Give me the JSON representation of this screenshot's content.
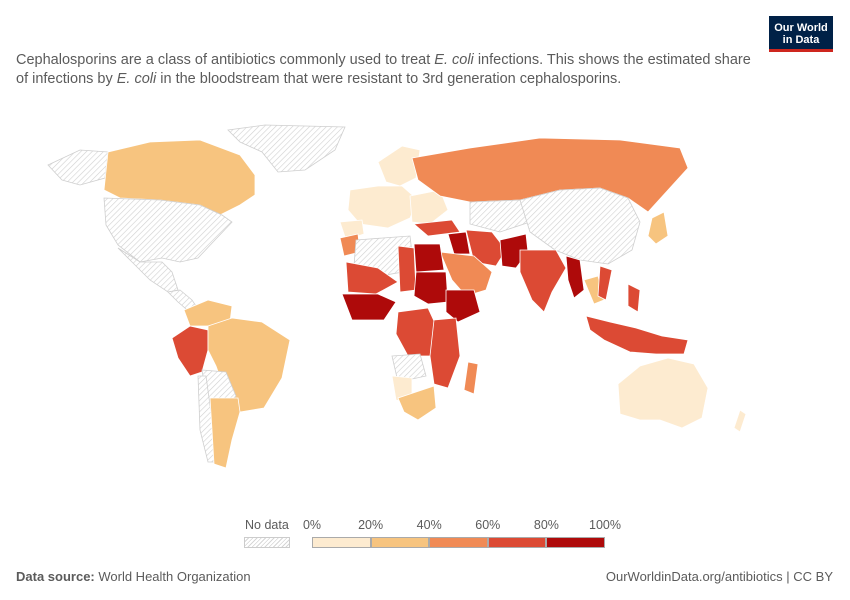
{
  "subtitle": {
    "part1": "Cephalosporins are a class of antibiotics commonly used to treat ",
    "em1": "E. coli",
    "part2": " infections. This shows the estimated share of infections by ",
    "em2": "E. coli",
    "part3": " in the bloodstream that were resistant to 3rd generation cephalosporins."
  },
  "logo": {
    "line1": "Our World",
    "line2": "in Data"
  },
  "legend": {
    "no_data_label": "No data",
    "ticks": [
      "0%",
      "20%",
      "40%",
      "60%",
      "80%",
      "100%"
    ],
    "bins": [
      "#fdebd0",
      "#f7c47f",
      "#f08a55",
      "#dc4a34",
      "#ae0a0a"
    ],
    "no_data_color": "#e9e9e9"
  },
  "footer": {
    "source_label": "Data source:",
    "source_value": " World Health Organization",
    "link": "OurWorldinData.org/antibiotics | CC BY"
  },
  "colors": {
    "canada": "#f7c47f",
    "greenland": "#e9e9e9",
    "usa": "#e9e9e9",
    "mexico": "#e9e9e9",
    "peru": "#dc4a34",
    "brazil": "#f7c47f",
    "argentina": "#f7c47f",
    "chile": "#e9e9e9",
    "europe": "#fdebd0",
    "russia": "#f08a55",
    "china": "#e9e9e9",
    "india": "#dc4a34",
    "pakistan": "#ae0a0a",
    "iran": "#dc4a34",
    "saudi": "#f08a55",
    "egypt": "#ae0a0a",
    "sudan": "#ae0a0a",
    "chad": "#dc4a34",
    "nigeria": "#ae0a0a",
    "ethiopia": "#ae0a0a",
    "drc": "#dc4a34",
    "tanzania": "#dc4a34",
    "madagascar": "#f08a55",
    "south_africa": "#f7c47f",
    "australia": "#fdebd0",
    "indonesia": "#dc4a34",
    "japan": "#f7c47f",
    "myanmar": "#ae0a0a",
    "westafrica": "#dc4a34",
    "algeria": "#e9e9e9",
    "morocco": "#f08a55",
    "angola": "#e9e9e9",
    "namibia": "#fdebd0"
  }
}
